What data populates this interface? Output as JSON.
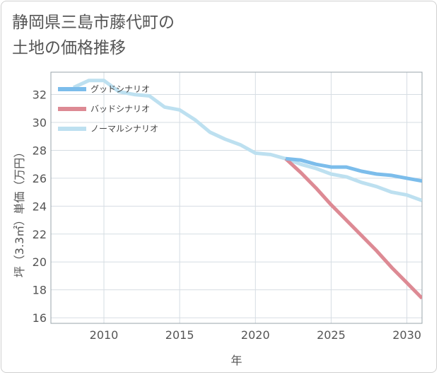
{
  "title_lines": [
    "静岡県三島市藤代町の",
    "土地の価格推移"
  ],
  "chart_data": {
    "type": "line",
    "xlabel": "年",
    "ylabel": "坪（3.3㎡）単価（万円）",
    "xlim": [
      2006.5,
      2031
    ],
    "ylim": [
      15.6,
      33.6
    ],
    "xticks": [
      2010,
      2015,
      2020,
      2025,
      2030
    ],
    "yticks": [
      16,
      18,
      20,
      22,
      24,
      26,
      28,
      30,
      32
    ],
    "grid": true,
    "legend_position": "top-left",
    "series": [
      {
        "name": "グッドシナリオ",
        "color": "#7cbdeb",
        "x": [
          2022,
          2023,
          2024,
          2025,
          2026,
          2027,
          2028,
          2029,
          2030,
          2031
        ],
        "y": [
          27.4,
          27.3,
          27.0,
          26.8,
          26.8,
          26.5,
          26.3,
          26.2,
          26.0,
          25.8
        ]
      },
      {
        "name": "バッドシナリオ",
        "color": "#dd8a94",
        "x": [
          2022,
          2023,
          2024,
          2025,
          2026,
          2027,
          2028,
          2029,
          2030,
          2031
        ],
        "y": [
          27.4,
          26.4,
          25.3,
          24.1,
          23.0,
          21.9,
          20.8,
          19.6,
          18.5,
          17.4
        ]
      },
      {
        "name": "ノーマルシナリオ",
        "color": "#bde0f0",
        "x": [
          2008,
          2009,
          2010,
          2011,
          2012,
          2013,
          2014,
          2015,
          2016,
          2017,
          2018,
          2019,
          2020,
          2021,
          2022,
          2023,
          2024,
          2025,
          2026,
          2027,
          2028,
          2029,
          2030,
          2031
        ],
        "y": [
          32.5,
          33.0,
          33.0,
          32.2,
          32.0,
          31.9,
          31.1,
          30.9,
          30.2,
          29.3,
          28.8,
          28.4,
          27.8,
          27.7,
          27.4,
          27.0,
          26.7,
          26.3,
          26.1,
          25.7,
          25.4,
          25.0,
          24.8,
          24.4
        ]
      }
    ]
  }
}
